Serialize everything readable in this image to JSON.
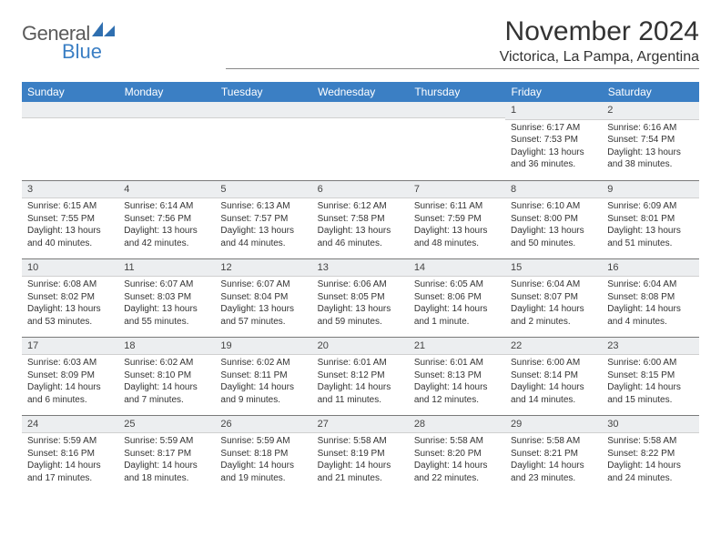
{
  "brand": {
    "text1": "General",
    "text2": "Blue",
    "logo_color": "#2f6fb0"
  },
  "colors": {
    "header_bg": "#3b7fc4",
    "header_text": "#ffffff",
    "daynum_bg": "#eceef0",
    "body_text": "#333333",
    "rule": "#7a7a7a"
  },
  "title": "November 2024",
  "location": "Victorica, La Pampa, Argentina",
  "weekdays": [
    "Sunday",
    "Monday",
    "Tuesday",
    "Wednesday",
    "Thursday",
    "Friday",
    "Saturday"
  ],
  "weeks": [
    [
      null,
      null,
      null,
      null,
      null,
      {
        "n": "1",
        "sr": "Sunrise: 6:17 AM",
        "ss": "Sunset: 7:53 PM",
        "d1": "Daylight: 13 hours",
        "d2": "and 36 minutes."
      },
      {
        "n": "2",
        "sr": "Sunrise: 6:16 AM",
        "ss": "Sunset: 7:54 PM",
        "d1": "Daylight: 13 hours",
        "d2": "and 38 minutes."
      }
    ],
    [
      {
        "n": "3",
        "sr": "Sunrise: 6:15 AM",
        "ss": "Sunset: 7:55 PM",
        "d1": "Daylight: 13 hours",
        "d2": "and 40 minutes."
      },
      {
        "n": "4",
        "sr": "Sunrise: 6:14 AM",
        "ss": "Sunset: 7:56 PM",
        "d1": "Daylight: 13 hours",
        "d2": "and 42 minutes."
      },
      {
        "n": "5",
        "sr": "Sunrise: 6:13 AM",
        "ss": "Sunset: 7:57 PM",
        "d1": "Daylight: 13 hours",
        "d2": "and 44 minutes."
      },
      {
        "n": "6",
        "sr": "Sunrise: 6:12 AM",
        "ss": "Sunset: 7:58 PM",
        "d1": "Daylight: 13 hours",
        "d2": "and 46 minutes."
      },
      {
        "n": "7",
        "sr": "Sunrise: 6:11 AM",
        "ss": "Sunset: 7:59 PM",
        "d1": "Daylight: 13 hours",
        "d2": "and 48 minutes."
      },
      {
        "n": "8",
        "sr": "Sunrise: 6:10 AM",
        "ss": "Sunset: 8:00 PM",
        "d1": "Daylight: 13 hours",
        "d2": "and 50 minutes."
      },
      {
        "n": "9",
        "sr": "Sunrise: 6:09 AM",
        "ss": "Sunset: 8:01 PM",
        "d1": "Daylight: 13 hours",
        "d2": "and 51 minutes."
      }
    ],
    [
      {
        "n": "10",
        "sr": "Sunrise: 6:08 AM",
        "ss": "Sunset: 8:02 PM",
        "d1": "Daylight: 13 hours",
        "d2": "and 53 minutes."
      },
      {
        "n": "11",
        "sr": "Sunrise: 6:07 AM",
        "ss": "Sunset: 8:03 PM",
        "d1": "Daylight: 13 hours",
        "d2": "and 55 minutes."
      },
      {
        "n": "12",
        "sr": "Sunrise: 6:07 AM",
        "ss": "Sunset: 8:04 PM",
        "d1": "Daylight: 13 hours",
        "d2": "and 57 minutes."
      },
      {
        "n": "13",
        "sr": "Sunrise: 6:06 AM",
        "ss": "Sunset: 8:05 PM",
        "d1": "Daylight: 13 hours",
        "d2": "and 59 minutes."
      },
      {
        "n": "14",
        "sr": "Sunrise: 6:05 AM",
        "ss": "Sunset: 8:06 PM",
        "d1": "Daylight: 14 hours",
        "d2": "and 1 minute."
      },
      {
        "n": "15",
        "sr": "Sunrise: 6:04 AM",
        "ss": "Sunset: 8:07 PM",
        "d1": "Daylight: 14 hours",
        "d2": "and 2 minutes."
      },
      {
        "n": "16",
        "sr": "Sunrise: 6:04 AM",
        "ss": "Sunset: 8:08 PM",
        "d1": "Daylight: 14 hours",
        "d2": "and 4 minutes."
      }
    ],
    [
      {
        "n": "17",
        "sr": "Sunrise: 6:03 AM",
        "ss": "Sunset: 8:09 PM",
        "d1": "Daylight: 14 hours",
        "d2": "and 6 minutes."
      },
      {
        "n": "18",
        "sr": "Sunrise: 6:02 AM",
        "ss": "Sunset: 8:10 PM",
        "d1": "Daylight: 14 hours",
        "d2": "and 7 minutes."
      },
      {
        "n": "19",
        "sr": "Sunrise: 6:02 AM",
        "ss": "Sunset: 8:11 PM",
        "d1": "Daylight: 14 hours",
        "d2": "and 9 minutes."
      },
      {
        "n": "20",
        "sr": "Sunrise: 6:01 AM",
        "ss": "Sunset: 8:12 PM",
        "d1": "Daylight: 14 hours",
        "d2": "and 11 minutes."
      },
      {
        "n": "21",
        "sr": "Sunrise: 6:01 AM",
        "ss": "Sunset: 8:13 PM",
        "d1": "Daylight: 14 hours",
        "d2": "and 12 minutes."
      },
      {
        "n": "22",
        "sr": "Sunrise: 6:00 AM",
        "ss": "Sunset: 8:14 PM",
        "d1": "Daylight: 14 hours",
        "d2": "and 14 minutes."
      },
      {
        "n": "23",
        "sr": "Sunrise: 6:00 AM",
        "ss": "Sunset: 8:15 PM",
        "d1": "Daylight: 14 hours",
        "d2": "and 15 minutes."
      }
    ],
    [
      {
        "n": "24",
        "sr": "Sunrise: 5:59 AM",
        "ss": "Sunset: 8:16 PM",
        "d1": "Daylight: 14 hours",
        "d2": "and 17 minutes."
      },
      {
        "n": "25",
        "sr": "Sunrise: 5:59 AM",
        "ss": "Sunset: 8:17 PM",
        "d1": "Daylight: 14 hours",
        "d2": "and 18 minutes."
      },
      {
        "n": "26",
        "sr": "Sunrise: 5:59 AM",
        "ss": "Sunset: 8:18 PM",
        "d1": "Daylight: 14 hours",
        "d2": "and 19 minutes."
      },
      {
        "n": "27",
        "sr": "Sunrise: 5:58 AM",
        "ss": "Sunset: 8:19 PM",
        "d1": "Daylight: 14 hours",
        "d2": "and 21 minutes."
      },
      {
        "n": "28",
        "sr": "Sunrise: 5:58 AM",
        "ss": "Sunset: 8:20 PM",
        "d1": "Daylight: 14 hours",
        "d2": "and 22 minutes."
      },
      {
        "n": "29",
        "sr": "Sunrise: 5:58 AM",
        "ss": "Sunset: 8:21 PM",
        "d1": "Daylight: 14 hours",
        "d2": "and 23 minutes."
      },
      {
        "n": "30",
        "sr": "Sunrise: 5:58 AM",
        "ss": "Sunset: 8:22 PM",
        "d1": "Daylight: 14 hours",
        "d2": "and 24 minutes."
      }
    ]
  ]
}
